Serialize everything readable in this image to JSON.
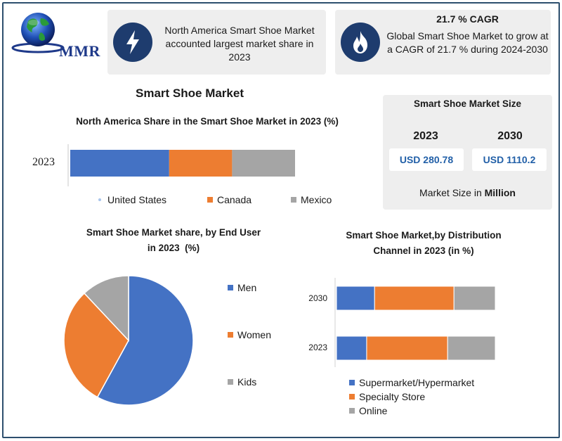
{
  "logo": {
    "text": "MMR"
  },
  "highlights": {
    "north_america": "North America Smart Shoe Market accounted largest market share in 2023",
    "cagr_title": "21.7 % CAGR",
    "cagr_text": "Global Smart Shoe Market to grow at a CAGR of 21.7 % during 2024-2030"
  },
  "main_title": "Smart Shoe Market",
  "market_size": {
    "title": "Smart Shoe Market Size",
    "years": [
      "2023",
      "2030"
    ],
    "values": [
      "USD 280.78",
      "USD 1110.2"
    ],
    "unit_prefix": "Market Size in",
    "unit_bold": "Million"
  },
  "colors": {
    "blue": "#4472c4",
    "orange": "#ed7d31",
    "gray": "#a5a5a5",
    "navy": "#1e3c6e"
  },
  "chart_data": [
    {
      "type": "bar",
      "orientation": "horizontal-stacked",
      "title": "North America Share in the Smart Shoe Market in 2023 (%)",
      "categories": [
        "2023"
      ],
      "series": [
        {
          "name": "United States",
          "values": [
            44
          ]
        },
        {
          "name": "Canada",
          "values": [
            28
          ]
        },
        {
          "name": "Mexico",
          "values": [
            28
          ]
        }
      ],
      "legend": "bottom"
    },
    {
      "type": "pie",
      "title": "Smart Shoe Market share, by End User in 2023 (%)",
      "labels": [
        "Men",
        "Women",
        "Kids"
      ],
      "values": [
        58,
        30,
        12
      ],
      "legend": "right"
    },
    {
      "type": "bar",
      "orientation": "horizontal-stacked",
      "title": "Smart Shoe Market,by Distribution Channel in 2023 (in %)",
      "categories": [
        "2030",
        "2023"
      ],
      "series": [
        {
          "name": "Supermarket/Hypermarket",
          "values": [
            24,
            19
          ]
        },
        {
          "name": "Specialty Store",
          "values": [
            50,
            51
          ]
        },
        {
          "name": "Online",
          "values": [
            26,
            30
          ]
        }
      ],
      "legend": "bottom"
    }
  ]
}
